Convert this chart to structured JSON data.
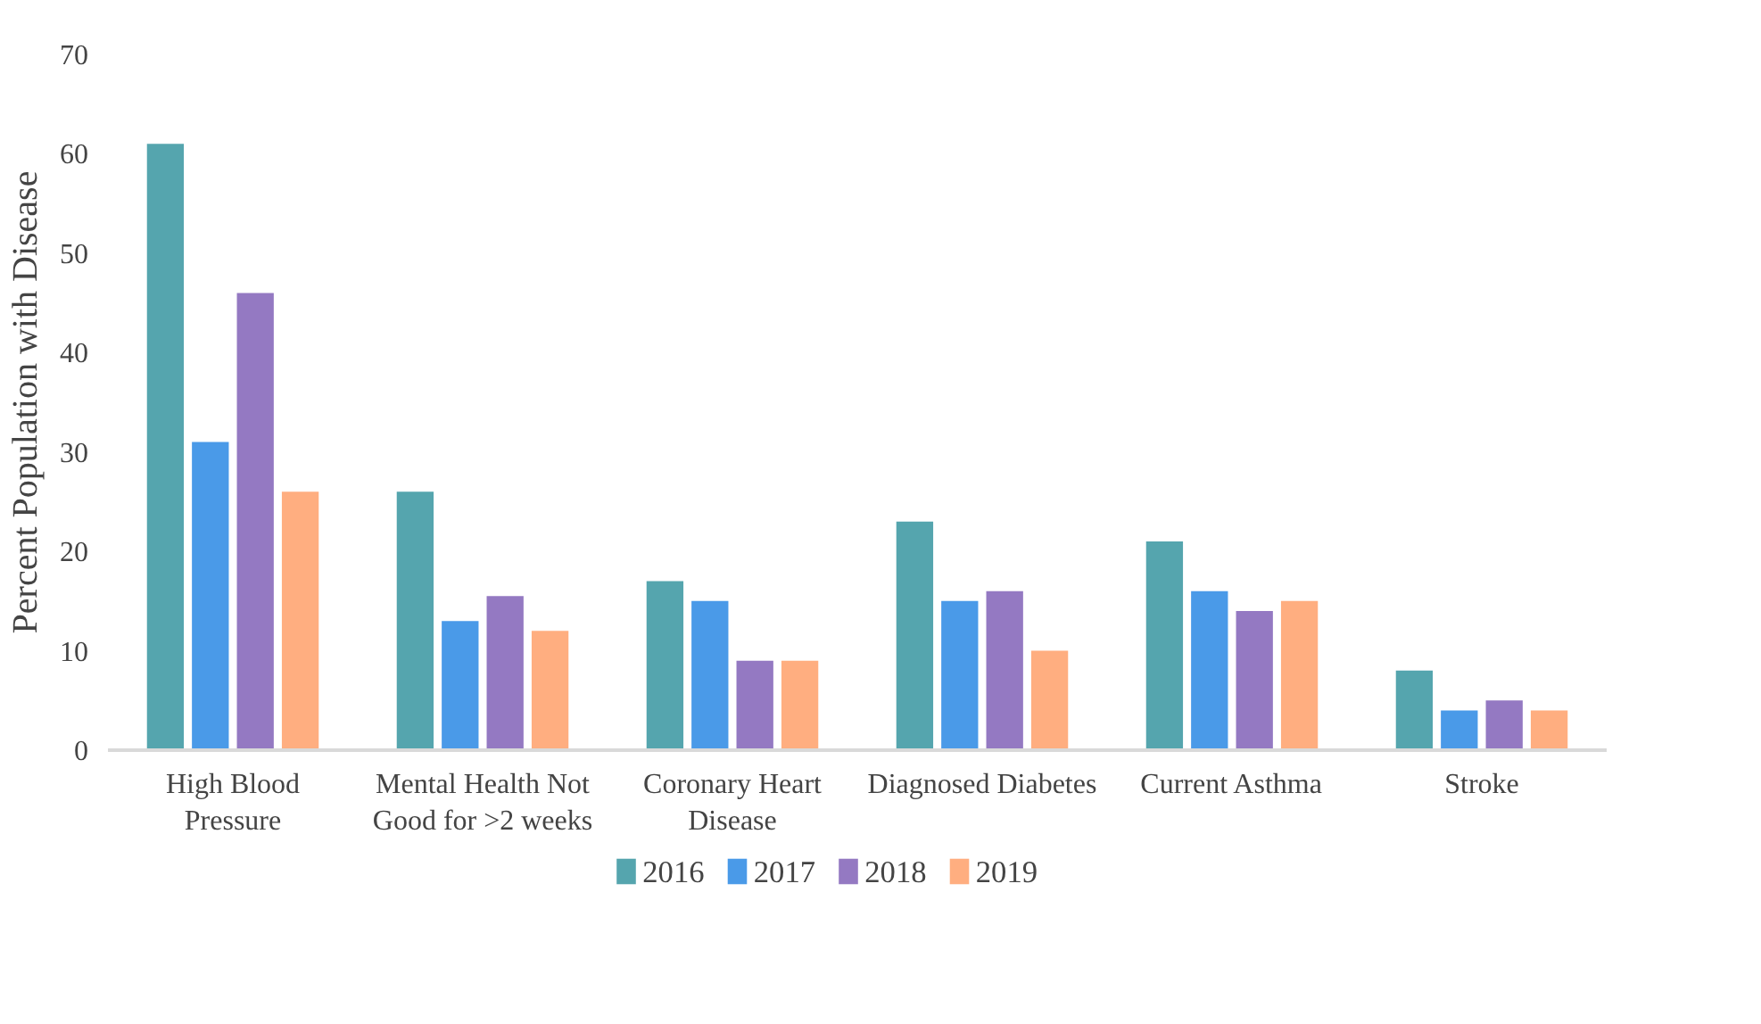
{
  "chart_data": {
    "type": "bar",
    "ylabel": "Percent Population with Disease",
    "categories": [
      "High Blood Pressure",
      "Mental Health Not Good for >2 weeks",
      "Coronary Heart Disease",
      "Diagnosed Diabetes",
      "Current Asthma",
      "Stroke"
    ],
    "series": [
      {
        "name": "2016",
        "color": "#55a5ae",
        "values": [
          61,
          26,
          17,
          23,
          21,
          8
        ]
      },
      {
        "name": "2017",
        "color": "#4a9ae8",
        "values": [
          31,
          13,
          15,
          15,
          16,
          4
        ]
      },
      {
        "name": "2018",
        "color": "#9479c2",
        "values": [
          46,
          15.5,
          9,
          16,
          14,
          5
        ]
      },
      {
        "name": "2019",
        "color": "#ffae80",
        "values": [
          26,
          12,
          9,
          10,
          15,
          4
        ]
      }
    ],
    "ylim": [
      0,
      70
    ],
    "yticks": [
      0,
      10,
      20,
      30,
      40,
      50,
      60,
      70
    ],
    "grid": false,
    "legend": "bottom"
  }
}
